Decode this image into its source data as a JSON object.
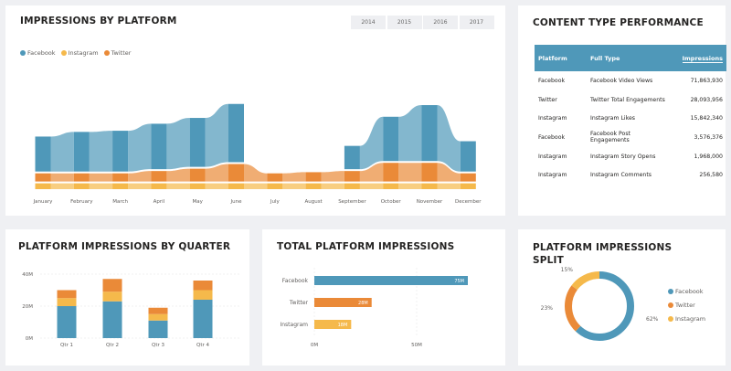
{
  "colors": {
    "facebook": "#4f98b9",
    "instagram": "#f5b94b",
    "twitter": "#ea8a38"
  },
  "impressions_card": {
    "title": "IMPRESSIONS BY PLATFORM",
    "years": [
      "2014",
      "2015",
      "2016",
      "2017"
    ],
    "legend": [
      "Facebook",
      "Instagram",
      "Twitter"
    ]
  },
  "content_card": {
    "title": "CONTENT TYPE PERFORMANCE",
    "columns": [
      "Platform",
      "Full Type",
      "Impressions"
    ],
    "rows": [
      [
        "Facebook",
        "Facebook Video Views",
        "71,863,930"
      ],
      [
        "Twitter",
        "Twitter Total Engagements",
        "28,093,956"
      ],
      [
        "Instagram",
        "Instagram Likes",
        "15,842,340"
      ],
      [
        "Facebook",
        "Facebook Post Engagements",
        "3,576,376"
      ],
      [
        "Instagram",
        "Instagram Story Opens",
        "1,968,000"
      ],
      [
        "Instagram",
        "Instagram Comments",
        "256,580"
      ]
    ]
  },
  "quarter_card": {
    "title": "PLATFORM IMPRESSIONS BY QUARTER"
  },
  "total_card": {
    "title": "TOTAL PLATFORM IMPRESSIONS"
  },
  "split_card": {
    "title_line1": "PLATFORM IMPRESSIONS",
    "title_line2": "SPLIT",
    "legend": [
      "Facebook",
      "Twitter",
      "Instagram"
    ]
  },
  "chart_data": [
    {
      "type": "bar",
      "title": "IMPRESSIONS BY PLATFORM",
      "stacked": true,
      "categories": [
        "January",
        "February",
        "March",
        "April",
        "May",
        "June",
        "July",
        "August",
        "September",
        "October",
        "November",
        "December"
      ],
      "series": [
        {
          "name": "Instagram",
          "values": [
            2.5,
            2.5,
            2.5,
            2.5,
            2.5,
            2.5,
            2.5,
            2.5,
            2.5,
            2.5,
            2.5,
            2.5
          ]
        },
        {
          "name": "Twitter",
          "values": [
            3.5,
            3.5,
            3.5,
            4.5,
            5.5,
            7.5,
            3.5,
            4,
            4.5,
            8,
            8,
            3.5
          ]
        },
        {
          "name": "Facebook",
          "values": [
            15,
            17,
            17.5,
            19.5,
            21,
            25,
            0,
            0,
            10,
            19,
            24,
            13
          ]
        }
      ]
    },
    {
      "type": "bar",
      "title": "PLATFORM IMPRESSIONS BY QUARTER",
      "stacked": true,
      "categories": [
        "Qtr 1",
        "Qtr 2",
        "Qtr 3",
        "Qtr 4"
      ],
      "ylim": [
        0,
        40
      ],
      "yticks": [
        "0M",
        "20M",
        "40M"
      ],
      "series": [
        {
          "name": "Facebook",
          "values": [
            20,
            23,
            11,
            24
          ]
        },
        {
          "name": "Instagram",
          "values": [
            5,
            6,
            4,
            6
          ]
        },
        {
          "name": "Twitter",
          "values": [
            5,
            8,
            4,
            6
          ]
        }
      ]
    },
    {
      "type": "bar",
      "orientation": "horizontal",
      "title": "TOTAL PLATFORM IMPRESSIONS",
      "categories": [
        "Facebook",
        "Twitter",
        "Instagram"
      ],
      "values": [
        75,
        28,
        18
      ],
      "labels": [
        "75M",
        "28M",
        "18M"
      ],
      "xlim": [
        0,
        80
      ],
      "xticks": [
        "0M",
        "50M"
      ]
    },
    {
      "type": "pie",
      "style": "donut",
      "title": "PLATFORM IMPRESSIONS SPLIT",
      "categories": [
        "Facebook",
        "Twitter",
        "Instagram"
      ],
      "values": [
        62,
        23,
        15
      ],
      "labels": [
        "62%",
        "23%",
        "15%"
      ]
    }
  ]
}
